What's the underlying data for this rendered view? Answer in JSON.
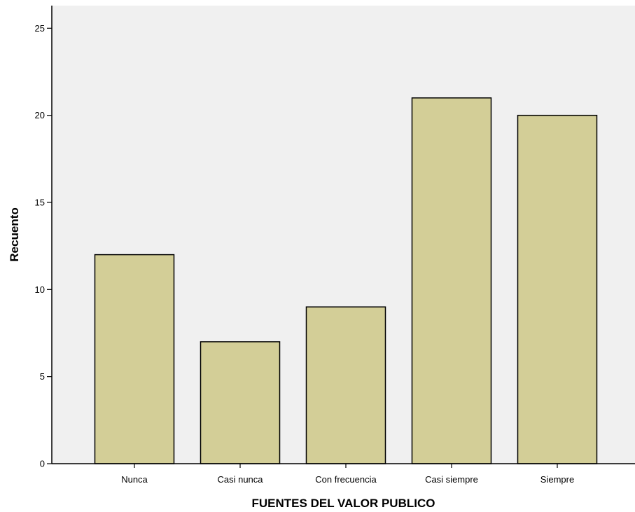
{
  "chart_data": {
    "type": "bar",
    "categories": [
      "Nunca",
      "Casi nunca",
      "Con frecuencia",
      "Casi siempre",
      "Siempre"
    ],
    "values": [
      12,
      7,
      9,
      21,
      20
    ],
    "xlabel": "FUENTES DEL VALOR PUBLICO",
    "ylabel": "Recuento",
    "ylim": [
      0,
      26.3
    ],
    "yticks": [
      0,
      5,
      10,
      15,
      20,
      25
    ],
    "grid": false,
    "legend": "none",
    "colors": {
      "plot_background": "#f0f0f0",
      "bar_fill": "#d3ce97",
      "bar_stroke": "#000000",
      "axis": "#000000"
    }
  }
}
